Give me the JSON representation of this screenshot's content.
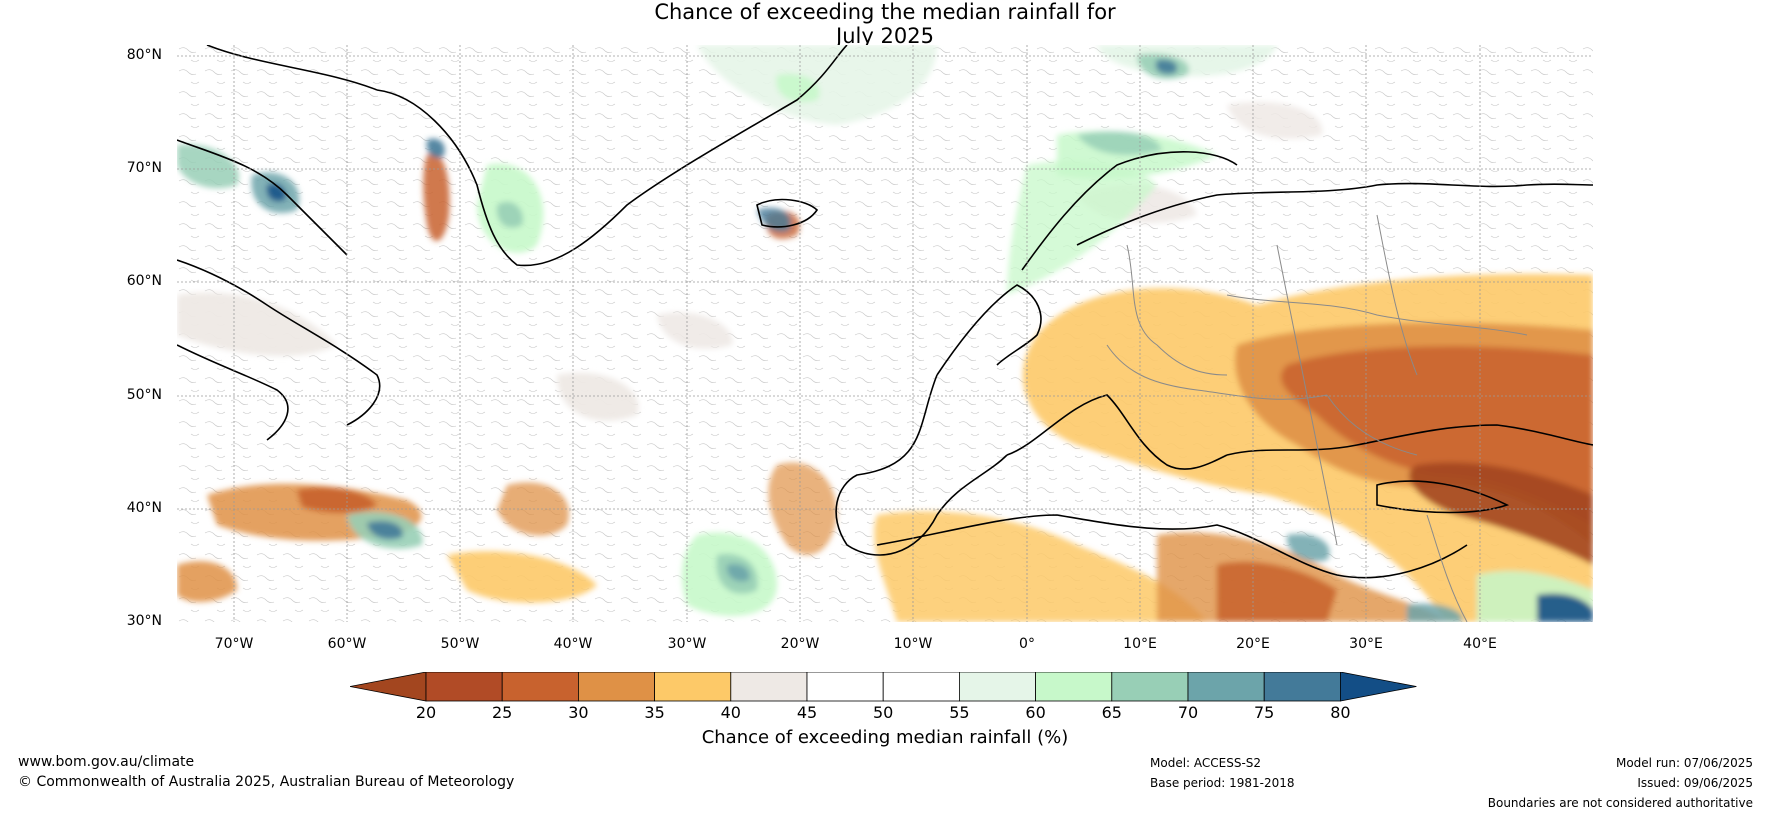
{
  "title_line1": "Chance of exceeding the median rainfall for",
  "title_line2": "July 2025",
  "map": {
    "type": "contour-map",
    "region": "North Atlantic and Europe",
    "projection": "plate-carree",
    "lon_range": [
      -75,
      50
    ],
    "lat_range": [
      30,
      80
    ],
    "grid": true,
    "lat_labels": [
      "80°N",
      "70°N",
      "60°N",
      "50°N",
      "40°N",
      "30°N"
    ],
    "lon_labels": [
      "70°W",
      "60°W",
      "50°W",
      "40°W",
      "30°W",
      "20°W",
      "10°W",
      "0°",
      "10°E",
      "20°E",
      "30°E",
      "40°E"
    ]
  },
  "colorbar": {
    "label": "Chance of exceeding median rainfall (%)",
    "ticks": [
      "20",
      "25",
      "30",
      "35",
      "40",
      "45",
      "50",
      "55",
      "60",
      "65",
      "70",
      "75",
      "80"
    ],
    "colors": [
      "#a3461f",
      "#b14b26",
      "#c8622e",
      "#df9146",
      "#fdc968",
      "#eee9e5",
      "#ffffff",
      "#ffffff",
      "#e5f5e8",
      "#c7f8ca",
      "#98cfb6",
      "#6ca4aa",
      "#437a99",
      "#134e86"
    ]
  },
  "footer": {
    "website": "www.bom.gov.au/climate",
    "copyright": "© Commonwealth of Australia 2025, Australian Bureau of Meteorology",
    "model": "Model: ACCESS-S2",
    "base_period": "Base period: 1981-2018",
    "model_run": "Model run: 07/06/2025",
    "issued": "Issued: 09/06/2025",
    "disclaimer": "Boundaries are not considered authoritative"
  }
}
